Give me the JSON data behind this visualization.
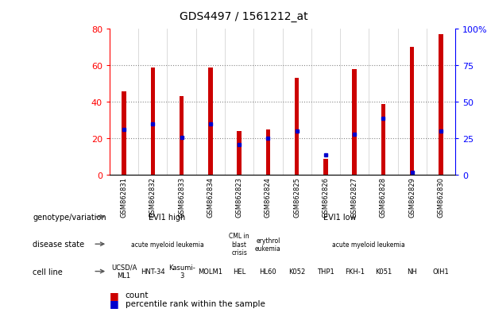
{
  "title": "GDS4497 / 1561212_at",
  "samples": [
    "GSM862831",
    "GSM862832",
    "GSM862833",
    "GSM862834",
    "GSM862823",
    "GSM862824",
    "GSM862825",
    "GSM862826",
    "GSM862827",
    "GSM862828",
    "GSM862829",
    "GSM862830"
  ],
  "counts": [
    46,
    59,
    43,
    59,
    24,
    25,
    53,
    9,
    58,
    39,
    70,
    77
  ],
  "percentile_ranks": [
    31,
    35,
    26,
    35,
    21,
    25,
    30,
    14,
    28,
    39,
    2,
    30
  ],
  "ylim_left": [
    0,
    80
  ],
  "ylim_right": [
    0,
    100
  ],
  "yticks_left": [
    0,
    20,
    40,
    60,
    80
  ],
  "yticks_right": [
    0,
    25,
    50,
    75,
    100
  ],
  "bar_color": "#cc0000",
  "percentile_color": "#0000cc",
  "bg_color": "#ffffff",
  "plot_bg": "#ffffff",
  "xtick_bg": "#d0d0d0",
  "grid_color": "#888888",
  "bar_width": 0.15,
  "genotype_groups": [
    {
      "label": "EVI1 high",
      "start": 0,
      "end": 4,
      "color": "#aaddaa"
    },
    {
      "label": "EVI1 low",
      "start": 4,
      "end": 12,
      "color": "#66cc66"
    }
  ],
  "disease_groups": [
    {
      "label": "acute myeloid leukemia",
      "start": 0,
      "end": 4,
      "color": "#aaaadd"
    },
    {
      "label": "CML in\nblast\ncrisis",
      "start": 4,
      "end": 5,
      "color": "#aaaadd"
    },
    {
      "label": "erythrol\neukemia",
      "start": 5,
      "end": 6,
      "color": "#aaaadd"
    },
    {
      "label": "acute myeloid leukemia",
      "start": 6,
      "end": 12,
      "color": "#aaaadd"
    }
  ],
  "cell_lines": [
    {
      "label": "UCSD/A\nML1",
      "start": 0,
      "end": 1,
      "color": "#dd8888"
    },
    {
      "label": "HNT-34",
      "start": 1,
      "end": 2,
      "color": "#dd8888"
    },
    {
      "label": "Kasumi-\n3",
      "start": 2,
      "end": 3,
      "color": "#dd8888"
    },
    {
      "label": "MOLM1",
      "start": 3,
      "end": 4,
      "color": "#dd8888"
    },
    {
      "label": "HEL",
      "start": 4,
      "end": 5,
      "color": "#f0b0b0"
    },
    {
      "label": "HL60",
      "start": 5,
      "end": 6,
      "color": "#f0b0b0"
    },
    {
      "label": "K052",
      "start": 6,
      "end": 7,
      "color": "#f0b0b0"
    },
    {
      "label": "THP1",
      "start": 7,
      "end": 8,
      "color": "#f0b0b0"
    },
    {
      "label": "FKH-1",
      "start": 8,
      "end": 9,
      "color": "#f0b0b0"
    },
    {
      "label": "K051",
      "start": 9,
      "end": 10,
      "color": "#f0b0b0"
    },
    {
      "label": "NH",
      "start": 10,
      "end": 11,
      "color": "#f0b0b0"
    },
    {
      "label": "OIH1",
      "start": 11,
      "end": 12,
      "color": "#f0b0b0"
    }
  ],
  "row_labels": [
    "genotype/variation",
    "disease state",
    "cell line"
  ],
  "legend_count_label": "count",
  "legend_pct_label": "percentile rank within the sample"
}
